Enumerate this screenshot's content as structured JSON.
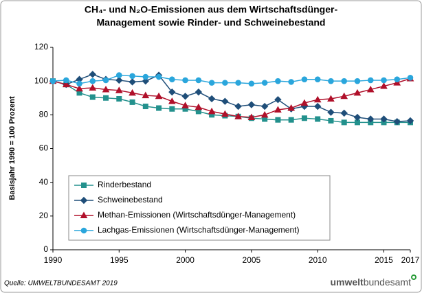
{
  "chart_data": {
    "type": "line",
    "title": [
      "CH₄- und N₂O-Emissionen aus dem Wirtschaftsdünger-",
      "Management sowie Rinder- und Schweinebestand"
    ],
    "y_label": "Basisjahr 1990 = 100 Prozent",
    "source": "Quelle: UMWELTBUNDESAMT 2019",
    "logo": [
      "umwelt",
      "bundesamt"
    ],
    "x": [
      1990,
      1991,
      1992,
      1993,
      1994,
      1995,
      1996,
      1997,
      1998,
      1999,
      2000,
      2001,
      2002,
      2003,
      2004,
      2005,
      2006,
      2007,
      2008,
      2009,
      2010,
      2011,
      2012,
      2013,
      2014,
      2015,
      2016,
      2017
    ],
    "xlim": [
      1990,
      2017
    ],
    "xticks": [
      1990,
      1995,
      2000,
      2005,
      2010,
      2015,
      2017
    ],
    "ylim": [
      0,
      120
    ],
    "yticks": [
      0,
      20,
      40,
      60,
      80,
      100,
      120
    ],
    "legend": "left",
    "series": [
      {
        "name": "Rinderbestand",
        "color": "#23918d",
        "marker": "square",
        "values": [
          100,
          98,
          93,
          90.5,
          90,
          89.5,
          87.5,
          85,
          84,
          83.5,
          83.5,
          82,
          80,
          79.5,
          79,
          78,
          77.5,
          77,
          77,
          78,
          77.5,
          76.5,
          75.5,
          75.5,
          75.5,
          75.5,
          75.5,
          75.5
        ]
      },
      {
        "name": "Schweinebestand",
        "color": "#1f4e79",
        "marker": "diamond",
        "values": [
          100,
          98,
          101,
          104,
          101,
          100.5,
          99.5,
          100,
          103.5,
          93.5,
          91,
          93.5,
          89.5,
          88,
          85,
          86,
          85,
          89,
          83.5,
          85,
          85,
          81.5,
          81,
          78.5,
          77.5,
          77.5,
          76,
          76.5
        ]
      },
      {
        "name": "Methan-Emissionen (Wirtschaftsdünger-Management)",
        "color": "#b0102a",
        "marker": "triangle",
        "values": [
          100,
          98,
          95.5,
          96,
          95,
          94.5,
          93,
          91.5,
          91,
          88,
          85.5,
          84.5,
          82,
          80.5,
          79,
          78.5,
          80,
          83,
          84,
          87,
          89,
          89.5,
          91,
          93,
          95,
          97,
          99,
          101.5
        ]
      },
      {
        "name": "Lachgas-Emissionen (Wirtschaftsdünger-Management)",
        "color": "#2aa6dc",
        "marker": "circle",
        "values": [
          100,
          100.5,
          98.5,
          100,
          100.5,
          103.5,
          103,
          102.5,
          102.5,
          101,
          100.5,
          100.5,
          99,
          99,
          99,
          98.5,
          99,
          100,
          99.5,
          101,
          101,
          100,
          100,
          100,
          100.5,
          100.5,
          101,
          102
        ]
      }
    ]
  }
}
